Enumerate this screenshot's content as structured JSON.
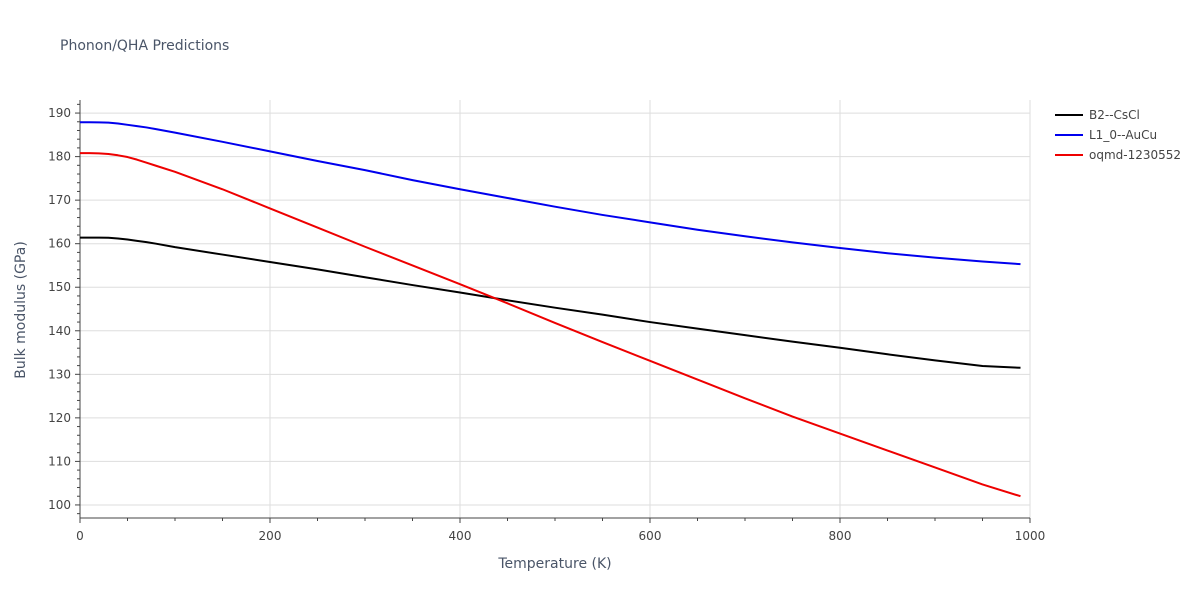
{
  "chart_data": {
    "type": "line",
    "title": "Phonon/QHA Predictions",
    "xlabel": "Temperature (K)",
    "ylabel": "Bulk modulus (GPa)",
    "xlim": [
      0,
      1000
    ],
    "ylim": [
      97,
      193
    ],
    "xticks": [
      0,
      200,
      400,
      600,
      800,
      1000
    ],
    "yticks": [
      100,
      110,
      120,
      130,
      140,
      150,
      160,
      170,
      180,
      190
    ],
    "grid": true,
    "legend_position": "top-right",
    "series": [
      {
        "name": "B2--CsCl",
        "color": "#000000",
        "x": [
          0,
          10,
          20,
          30,
          40,
          50,
          60,
          70,
          80,
          100,
          150,
          200,
          250,
          300,
          350,
          400,
          450,
          500,
          550,
          600,
          650,
          700,
          750,
          800,
          850,
          900,
          950,
          990
        ],
        "y": [
          161.4,
          161.4,
          161.4,
          161.35,
          161.2,
          160.95,
          160.65,
          160.35,
          160.0,
          159.2,
          157.5,
          155.8,
          154.1,
          152.3,
          150.5,
          148.8,
          147.0,
          145.3,
          143.7,
          142.0,
          140.5,
          139.0,
          137.5,
          136.1,
          134.6,
          133.2,
          131.9,
          131.5
        ]
      },
      {
        "name": "L1_0--AuCu",
        "color": "#0000ee",
        "x": [
          0,
          10,
          20,
          30,
          40,
          50,
          60,
          70,
          80,
          100,
          150,
          200,
          250,
          300,
          350,
          400,
          450,
          500,
          550,
          600,
          650,
          700,
          750,
          800,
          850,
          900,
          950,
          990
        ],
        "y": [
          187.9,
          187.9,
          187.85,
          187.8,
          187.6,
          187.3,
          187.0,
          186.7,
          186.3,
          185.5,
          183.4,
          181.2,
          179.0,
          176.9,
          174.6,
          172.5,
          170.5,
          168.5,
          166.6,
          164.9,
          163.2,
          161.7,
          160.3,
          159.0,
          157.8,
          156.8,
          155.9,
          155.3
        ]
      },
      {
        "name": "oqmd-1230552",
        "color": "#ee0000",
        "x": [
          0,
          10,
          20,
          30,
          40,
          50,
          60,
          70,
          80,
          100,
          150,
          200,
          250,
          300,
          350,
          400,
          450,
          500,
          550,
          600,
          650,
          700,
          750,
          800,
          850,
          900,
          950,
          990
        ],
        "y": [
          180.8,
          180.8,
          180.75,
          180.6,
          180.3,
          179.9,
          179.3,
          178.6,
          177.9,
          176.5,
          172.5,
          168.1,
          163.7,
          159.3,
          155.0,
          150.7,
          146.3,
          141.8,
          137.4,
          133.1,
          128.8,
          124.5,
          120.3,
          116.4,
          112.5,
          108.6,
          104.7,
          102.0
        ]
      }
    ]
  }
}
